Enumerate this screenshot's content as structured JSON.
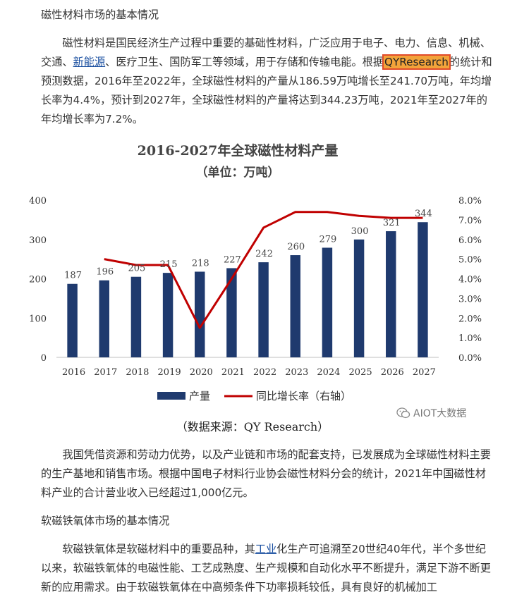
{
  "section1": {
    "heading": "磁性材料市场的基本情况",
    "para1": {
      "t1": "磁性材料是国民经济生产过程中重要的基础性材料，广泛应用于电子、电力、信息、机械、交通、",
      "link": "新能源",
      "t2": "、医疗卫生、国防军工等领域，用于存储和传输电能。根据",
      "highlight": "QYResearch",
      "t3": "的统计和预测数据，2016年至2022年，全球磁性材料的产量从186.59万吨增长至241.70万吨，年均增长率为4.4%，预计到2027年，全球磁性材料的产量将达到344.23万吨，2021年至2027年的年均增长率为7.2%。"
    }
  },
  "chart_data": {
    "type": "bar",
    "title": "2016-2027年全球磁性材料产量",
    "subtitle": "（单位：万吨）",
    "categories": [
      "2016",
      "2017",
      "2018",
      "2019",
      "2020",
      "2021",
      "2022",
      "2023",
      "2024",
      "2025",
      "2026",
      "2027"
    ],
    "series": [
      {
        "name": "产量",
        "type": "bar",
        "axis": "left",
        "color": "#1f3a6e",
        "values": [
          187,
          196,
          205,
          215,
          218,
          227,
          242,
          260,
          279,
          300,
          321,
          344
        ],
        "labels": [
          "187",
          "196",
          "205",
          "215",
          "218",
          "227",
          "242",
          "260",
          "279",
          "300",
          "321",
          "344"
        ]
      },
      {
        "name": "同比增长率（右轴）",
        "type": "line",
        "axis": "right",
        "color": "#c00000",
        "values": [
          null,
          5.0,
          4.7,
          4.7,
          1.5,
          4.0,
          6.6,
          7.4,
          7.4,
          7.2,
          7.1,
          7.1
        ]
      }
    ],
    "y_left": {
      "min": 0,
      "max": 400,
      "ticks": [
        "0",
        "100",
        "200",
        "300",
        "400"
      ]
    },
    "y_right": {
      "min": 0,
      "max": 8,
      "ticks": [
        "0.0%",
        "1.0%",
        "2.0%",
        "3.0%",
        "4.0%",
        "5.0%",
        "6.0%",
        "7.0%",
        "8.0%"
      ]
    },
    "legend_position": "bottom",
    "source": "（数据来源：QY Research）"
  },
  "watermark": {
    "text": "AIOT大数据",
    "icon": "wechat-icon"
  },
  "para2": "我国凭借资源和劳动力优势，以及产业链和市场的配套支持，已发展成为全球磁性材料主要的生产基地和销售市场。根据中国电子材料行业协会磁性材料分会的统计，2021年中国磁性材料产业的合计营业收入已经超过1,000亿元。",
  "section2": {
    "heading": "软磁铁氧体市场的基本情况",
    "para": {
      "t1": "软磁铁氧体是软磁材料中的重要品种，其",
      "link": "工业",
      "t2": "化生产可追溯至20世纪40年代，半个多世纪以来，软磁铁氧体的电磁性能、工艺成熟度、生产规模和自动化水平不断提升，满足下游不断更新的应用需求。由于软磁铁氧体在中高频条件下功率损耗较低，具有良好的机械加工"
    }
  }
}
